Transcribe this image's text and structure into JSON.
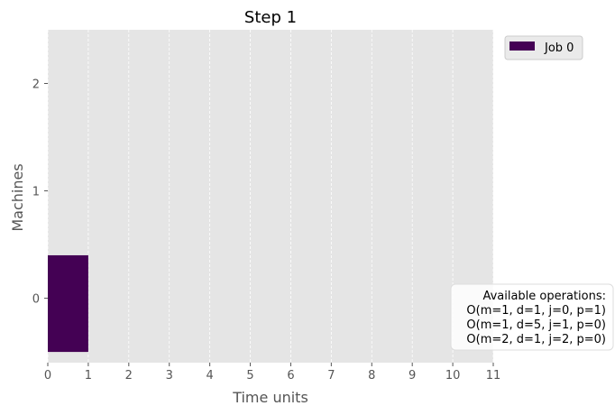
{
  "chart_data": {
    "type": "gantt",
    "title": "Step 1",
    "xlabel": "Time units",
    "ylabel": "Machines",
    "xlim": [
      0,
      11
    ],
    "ylim": [
      -0.6,
      2.5
    ],
    "xticks": [
      0,
      1,
      2,
      3,
      4,
      5,
      6,
      7,
      8,
      9,
      10,
      11
    ],
    "yticks": [
      0,
      1,
      2
    ],
    "grid": true,
    "legend_position": "outside-top-right",
    "series": [
      {
        "name": "Job 0",
        "color": "#440154",
        "bars": [
          {
            "machine": 0,
            "start": 0,
            "end": 1
          }
        ]
      }
    ],
    "annotation": {
      "title": "Available operations:",
      "lines": [
        "O(m=1, d=1, j=0, p=1)",
        "O(m=1, d=5, j=1, p=0)",
        "O(m=2, d=1, j=2, p=0)"
      ]
    }
  }
}
